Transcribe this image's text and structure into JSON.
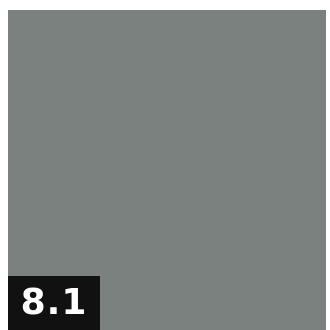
{
  "swatch": {
    "color": "#7b817f"
  },
  "badge": {
    "label": "8.1",
    "background": "#111111",
    "text_color": "#ffffff"
  }
}
